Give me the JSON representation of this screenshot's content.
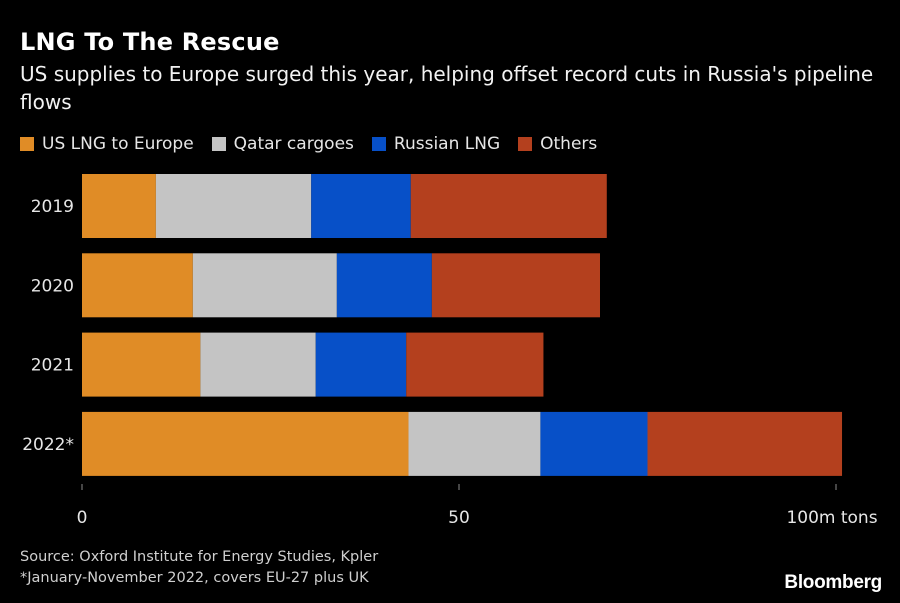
{
  "title": "LNG To The Rescue",
  "subtitle": "US supplies to Europe surged this year, helping offset record cuts in Russia's pipeline flows",
  "chart_data": {
    "type": "bar",
    "orientation": "horizontal",
    "stacked": true,
    "categories": [
      "2019",
      "2020",
      "2021",
      "2022*"
    ],
    "series": [
      {
        "name": "US LNG to Europe",
        "color": "#e08c26",
        "values": [
          9.8,
          14.7,
          15.7,
          43.3
        ]
      },
      {
        "name": "Qatar cargoes",
        "color": "#c4c4c4",
        "values": [
          20.6,
          19.1,
          15.3,
          17.5
        ]
      },
      {
        "name": "Russian LNG",
        "color": "#0750c8",
        "values": [
          13.2,
          12.6,
          12.0,
          14.2
        ]
      },
      {
        "name": "Others",
        "color": "#b4401e",
        "values": [
          26.0,
          22.3,
          18.2,
          25.8
        ]
      }
    ],
    "xlim": [
      0,
      100
    ],
    "xticks": [
      0,
      50,
      100
    ],
    "xticklabels": [
      "0",
      "50",
      "100m tons"
    ],
    "xlabel": "",
    "ylabel": "",
    "grid": false,
    "legend": "top-left"
  },
  "footer": {
    "source": "Source: Oxford Institute for Energy Studies, Kpler",
    "note": "*January-November 2022, covers EU-27 plus UK"
  },
  "brand": "Bloomberg"
}
